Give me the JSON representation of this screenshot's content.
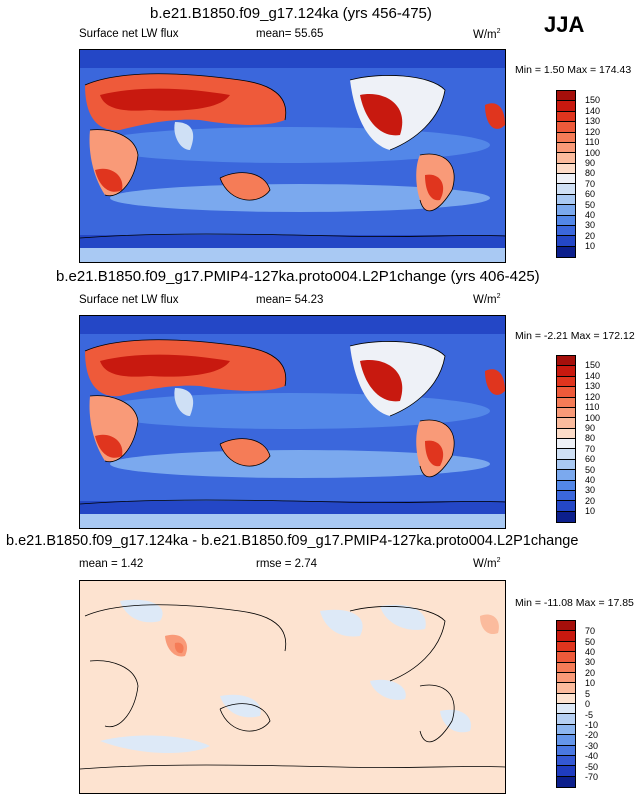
{
  "season": "JJA",
  "panels": [
    {
      "title": "b.e21.B1850.f09_g17.124ka (yrs 456-475)",
      "field": "Surface net LW flux",
      "stat": "mean=  55.65",
      "stat2": "",
      "units": "W/m",
      "units_exp": "2",
      "minmax": "Min =   1.50 Max = 174.43",
      "levels": [
        "150",
        "140",
        "130",
        "120",
        "110",
        "100",
        "90",
        "80",
        "70",
        "60",
        "50",
        "40",
        "30",
        "20",
        "10"
      ],
      "colors": [
        "#a50f0b",
        "#c8190f",
        "#e0351e",
        "#ee5a3a",
        "#f57c57",
        "#f99a78",
        "#fbbb9d",
        "#fddcc8",
        "#eef1f7",
        "#cfe0f5",
        "#a9c9f3",
        "#7ba9ee",
        "#5387e8",
        "#3b67dc",
        "#2447c6",
        "#0c1f8c"
      ]
    },
    {
      "title": "b.e21.B1850.f09_g17.PMIP4-127ka.proto004.L2P1change (yrs 406-425)",
      "field": "Surface net LW flux",
      "stat": "mean=  54.23",
      "stat2": "",
      "units": "W/m",
      "units_exp": "2",
      "minmax": "Min =  -2.21 Max = 172.12",
      "levels": [
        "150",
        "140",
        "130",
        "120",
        "110",
        "100",
        "90",
        "80",
        "70",
        "60",
        "50",
        "40",
        "30",
        "20",
        "10"
      ],
      "colors": [
        "#a50f0b",
        "#c8190f",
        "#e0351e",
        "#ee5a3a",
        "#f57c57",
        "#f99a78",
        "#fbbb9d",
        "#fddcc8",
        "#eef1f7",
        "#cfe0f5",
        "#a9c9f3",
        "#7ba9ee",
        "#5387e8",
        "#3b67dc",
        "#2447c6",
        "#0c1f8c"
      ]
    },
    {
      "title": "b.e21.B1850.f09_g17.124ka - b.e21.B1850.f09_g17.PMIP4-127ka.proto004.L2P1change",
      "field": "mean =   1.42",
      "stat": "rmse =   2.74",
      "stat2": "",
      "units": "W/m",
      "units_exp": "2",
      "minmax": "Min = -11.08 Max =  17.85",
      "levels": [
        "70",
        "50",
        "40",
        "30",
        "20",
        "10",
        "5",
        "0",
        "-5",
        "-10",
        "-20",
        "-30",
        "-40",
        "-50",
        "-70"
      ],
      "colors": [
        "#a50f0b",
        "#c8190f",
        "#e0351e",
        "#ee5a3a",
        "#f57c57",
        "#f99a78",
        "#fbbb9d",
        "#fde3d0",
        "#dde9f7",
        "#b6d0f3",
        "#8db6f0",
        "#6596ea",
        "#4a78e2",
        "#3458d4",
        "#1f3cc0",
        "#0c1f8c"
      ]
    }
  ]
}
